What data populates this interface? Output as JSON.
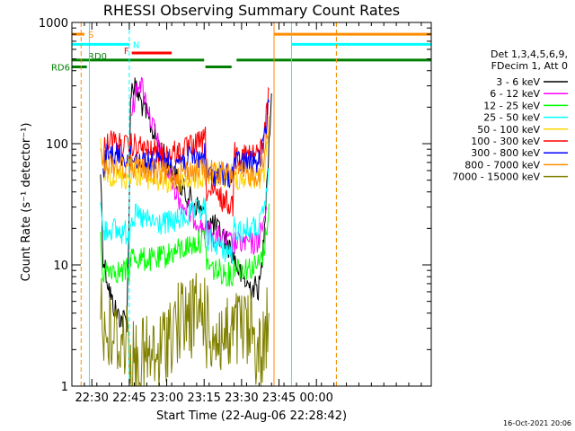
{
  "chart_data": {
    "type": "line",
    "title": "RHESSI Observing Summary Count Rates",
    "xlabel": "Start Time (22-Aug-06 22:28:42)",
    "ylabel": "Count Rate (s⁻¹ detector⁻¹)",
    "x_range_min": [
      -8,
      136
    ],
    "y_range": [
      1,
      1000
    ],
    "y_scale": "log",
    "grid": false,
    "legend_position": "right",
    "x_ticks": [
      {
        "v": 0,
        "label": "22:30"
      },
      {
        "v": 15,
        "label": "22:45"
      },
      {
        "v": 30,
        "label": "23:00"
      },
      {
        "v": 45,
        "label": "23:15"
      },
      {
        "v": 60,
        "label": "23:30"
      },
      {
        "v": 75,
        "label": "23:45"
      },
      {
        "v": 90,
        "label": "00:00"
      }
    ],
    "y_ticks": [
      {
        "v": 1,
        "label": "1"
      },
      {
        "v": 10,
        "label": "10"
      },
      {
        "v": 100,
        "label": "100"
      },
      {
        "v": 1000,
        "label": "1000"
      }
    ],
    "legend_header": [
      "Det 1,3,4,5,6,9,",
      "FDecim 1, Att 0"
    ],
    "series": [
      {
        "name": "3 - 6 keV",
        "color": "#000000",
        "points": [
          [
            3.5,
            60
          ],
          [
            4.5,
            12
          ],
          [
            6,
            8
          ],
          [
            8,
            5
          ],
          [
            10,
            4
          ],
          [
            12,
            3.6
          ],
          [
            14,
            3.5
          ],
          [
            15,
            30
          ],
          [
            15.5,
            280
          ],
          [
            17,
            300
          ],
          [
            19,
            240
          ],
          [
            22,
            170
          ],
          [
            25,
            120
          ],
          [
            28,
            85
          ],
          [
            32,
            60
          ],
          [
            36,
            43
          ],
          [
            40,
            34
          ],
          [
            44,
            28
          ],
          [
            47,
            23
          ],
          [
            50,
            20
          ],
          [
            53,
            17
          ],
          [
            56,
            13
          ],
          [
            58,
            10
          ],
          [
            60,
            8
          ],
          [
            62,
            7
          ],
          [
            64,
            6.5
          ],
          [
            67,
            6.5
          ],
          [
            68,
            9
          ],
          [
            71,
            100
          ],
          [
            72,
            260
          ]
        ]
      },
      {
        "name": "6 - 12 keV",
        "color": "#ff00ff",
        "points": [
          [
            16,
            180
          ],
          [
            19,
            350
          ],
          [
            21,
            250
          ],
          [
            24,
            150
          ],
          [
            27,
            90
          ],
          [
            30,
            60
          ],
          [
            33,
            45
          ],
          [
            35,
            35
          ],
          [
            37,
            30
          ],
          [
            39,
            27
          ],
          [
            42,
            24
          ],
          [
            44,
            21
          ],
          [
            46,
            19
          ],
          [
            48,
            18
          ],
          [
            50,
            17
          ],
          [
            53,
            16
          ],
          [
            56,
            15
          ],
          [
            59,
            15
          ],
          [
            62,
            15
          ],
          [
            64,
            15
          ],
          [
            66,
            15
          ],
          [
            68,
            19
          ],
          [
            70,
            30
          ]
        ]
      },
      {
        "name": "12 - 25 keV",
        "color": "#00ff00",
        "points": [
          [
            3.5,
            15
          ],
          [
            4.5,
            8.5
          ],
          [
            6,
            9
          ],
          [
            8,
            9.5
          ],
          [
            10,
            9
          ],
          [
            12,
            8.5
          ],
          [
            14,
            9
          ],
          [
            15,
            8.5
          ],
          [
            15.5,
            12
          ],
          [
            18,
            11.5
          ],
          [
            22,
            11
          ],
          [
            26,
            11
          ],
          [
            30,
            12
          ],
          [
            34,
            13
          ],
          [
            38,
            14
          ],
          [
            41,
            15
          ],
          [
            44,
            16
          ],
          [
            45.5,
            17
          ],
          [
            46,
            10
          ],
          [
            50,
            9
          ],
          [
            54,
            8.5
          ],
          [
            56.5,
            8
          ],
          [
            57,
            10
          ],
          [
            60,
            9.5
          ],
          [
            64,
            9.5
          ],
          [
            67,
            10
          ],
          [
            69,
            13
          ],
          [
            71,
            32
          ]
        ]
      },
      {
        "name": "25 - 50 keV",
        "color": "#00ffff",
        "points": [
          [
            3.5,
            30
          ],
          [
            4.5,
            18
          ],
          [
            6,
            20
          ],
          [
            8,
            20
          ],
          [
            10,
            19
          ],
          [
            12,
            18.5
          ],
          [
            14,
            18.5
          ],
          [
            15,
            18
          ],
          [
            15.5,
            25
          ],
          [
            18,
            25
          ],
          [
            22,
            23
          ],
          [
            26,
            22
          ],
          [
            30,
            22
          ],
          [
            34,
            23
          ],
          [
            38,
            25
          ],
          [
            41,
            27
          ],
          [
            44,
            28
          ],
          [
            45.5,
            30
          ],
          [
            46,
            16
          ],
          [
            50,
            15
          ],
          [
            54,
            13
          ],
          [
            56.5,
            12
          ],
          [
            57,
            20
          ],
          [
            60,
            19
          ],
          [
            64,
            20
          ],
          [
            67,
            20
          ],
          [
            69,
            28
          ],
          [
            71,
            60
          ]
        ]
      },
      {
        "name": "50 - 100 keV",
        "color": "#ffd700",
        "points": [
          [
            3.5,
            90
          ],
          [
            4.5,
            60
          ],
          [
            6,
            58
          ],
          [
            8,
            56
          ],
          [
            10,
            55
          ],
          [
            12,
            53
          ],
          [
            14,
            52
          ],
          [
            15,
            52
          ],
          [
            15.5,
            58
          ],
          [
            18,
            57
          ],
          [
            22,
            53
          ],
          [
            26,
            50
          ],
          [
            30,
            48
          ],
          [
            34,
            48
          ],
          [
            38,
            50
          ],
          [
            41,
            52
          ],
          [
            44,
            53
          ],
          [
            45.5,
            55
          ],
          [
            46,
            55
          ],
          [
            50,
            55
          ],
          [
            54,
            54
          ],
          [
            56.5,
            56
          ],
          [
            57,
            53
          ],
          [
            60,
            52
          ],
          [
            64,
            52
          ],
          [
            67,
            52
          ],
          [
            69,
            60
          ],
          [
            71,
            120
          ]
        ]
      },
      {
        "name": "100 - 300 keV",
        "color": "#ff0000",
        "points": [
          [
            4.5,
            82
          ],
          [
            6,
            110
          ],
          [
            8,
            105
          ],
          [
            10,
            100
          ],
          [
            12,
            96
          ],
          [
            14,
            94
          ],
          [
            15,
            92
          ],
          [
            15.5,
            97
          ],
          [
            18,
            95
          ],
          [
            22,
            88
          ],
          [
            26,
            84
          ],
          [
            30,
            82
          ],
          [
            34,
            85
          ],
          [
            38,
            90
          ],
          [
            41,
            96
          ],
          [
            44,
            102
          ],
          [
            45.5,
            110
          ],
          [
            46,
            40
          ],
          [
            50,
            37
          ],
          [
            54,
            33
          ],
          [
            56.5,
            31
          ],
          [
            57,
            85
          ],
          [
            60,
            82
          ],
          [
            64,
            80
          ],
          [
            67,
            82
          ],
          [
            69,
            110
          ],
          [
            71,
            280
          ]
        ]
      },
      {
        "name": "300 - 800 keV",
        "color": "#0000ff",
        "points": [
          [
            4.5,
            60
          ],
          [
            6,
            80
          ],
          [
            8,
            82
          ],
          [
            10,
            80
          ],
          [
            12,
            78
          ],
          [
            14,
            77
          ],
          [
            15,
            75
          ],
          [
            15.5,
            78
          ],
          [
            18,
            76
          ],
          [
            22,
            72
          ],
          [
            26,
            70
          ],
          [
            30,
            70
          ],
          [
            34,
            72
          ],
          [
            38,
            74
          ],
          [
            41,
            76
          ],
          [
            44,
            78
          ],
          [
            45.5,
            80
          ],
          [
            46,
            56
          ],
          [
            50,
            55
          ],
          [
            54,
            54
          ],
          [
            56.5,
            55
          ],
          [
            57,
            70
          ],
          [
            60,
            70
          ],
          [
            64,
            70
          ],
          [
            67,
            70
          ],
          [
            69,
            100
          ],
          [
            71,
            220
          ]
        ]
      },
      {
        "name": "800 - 7000 keV",
        "color": "#ff8c00",
        "points": [
          [
            3.5,
            100
          ],
          [
            4.5,
            75
          ],
          [
            6,
            70
          ],
          [
            8,
            68
          ],
          [
            10,
            66
          ],
          [
            12,
            65
          ],
          [
            14,
            64
          ],
          [
            15,
            64
          ],
          [
            15.5,
            66
          ],
          [
            18,
            65
          ],
          [
            22,
            60
          ],
          [
            26,
            57
          ],
          [
            30,
            56
          ],
          [
            34,
            57
          ],
          [
            38,
            59
          ],
          [
            41,
            60
          ],
          [
            44,
            61
          ],
          [
            45.5,
            62
          ],
          [
            46,
            60
          ],
          [
            50,
            58
          ],
          [
            54,
            56
          ],
          [
            56.5,
            54
          ],
          [
            57,
            57
          ],
          [
            60,
            56
          ],
          [
            64,
            56
          ],
          [
            67,
            56
          ],
          [
            69,
            75
          ],
          [
            71,
            170
          ]
        ]
      },
      {
        "name": "7000 - 15000 keV",
        "color": "#808000",
        "points": [
          [
            3.5,
            6
          ],
          [
            4.5,
            3
          ],
          [
            6,
            2.6
          ],
          [
            8,
            2.5
          ],
          [
            10,
            2.4
          ],
          [
            12,
            2.5
          ],
          [
            14,
            2.4
          ],
          [
            15,
            2.4
          ],
          [
            15.5,
            1.5
          ],
          [
            18,
            1.6
          ],
          [
            22,
            1.7
          ],
          [
            26,
            1.6
          ],
          [
            28,
            2
          ],
          [
            31,
            2.8
          ],
          [
            34,
            3.2
          ],
          [
            37,
            3.5
          ],
          [
            40,
            3.8
          ],
          [
            43,
            4
          ],
          [
            45.5,
            4.2
          ],
          [
            46,
            3
          ],
          [
            50,
            2.6
          ],
          [
            54,
            2.4
          ],
          [
            56.5,
            2.3
          ],
          [
            57,
            3
          ],
          [
            60,
            2.9
          ],
          [
            64,
            2.8
          ],
          [
            66,
            2.2
          ],
          [
            68,
            1.6
          ],
          [
            69,
            2.4
          ],
          [
            71,
            4
          ]
        ]
      }
    ],
    "flag_bars": [
      {
        "label": "S",
        "color": "#ff8c00",
        "y": 800,
        "x0": -8,
        "x1": -3
      },
      {
        "label": "N",
        "color": "#00ffff",
        "y": 660,
        "x0": -8,
        "x1": 15
      },
      {
        "label": "F",
        "color": "#ff0000",
        "y": 560,
        "x0": 16,
        "x1": 32
      },
      {
        "label": "RD0",
        "color": "#008000",
        "y": 490,
        "x0": -8,
        "x1": 45
      },
      {
        "label": "RD6",
        "color": "#008000",
        "y": 430,
        "x0": -8,
        "x1": -2
      }
    ],
    "flag_bars_unlabeled": [
      {
        "color": "#008000",
        "y": 430,
        "x0": 45.5,
        "x1": 56
      },
      {
        "color": "#008000",
        "y": 490,
        "x0": 58,
        "x1": 136
      },
      {
        "color": "#ff8c00",
        "y": 800,
        "x0": 73,
        "x1": 136
      },
      {
        "color": "#00ffff",
        "y": 660,
        "x0": 80,
        "x1": 136
      }
    ],
    "vertical_markers": [
      {
        "x": -4.3,
        "color": "#ff8c00",
        "style": "dashed"
      },
      {
        "x": -1,
        "color": "#00ffff",
        "style": "solid"
      },
      {
        "x": 15,
        "color": "#00ffff",
        "style": "dashed"
      },
      {
        "x": 73,
        "color": "#ff8c00",
        "style": "solid"
      },
      {
        "x": 80,
        "color": "#00ffff",
        "style": "solid"
      },
      {
        "x": 98,
        "color": "#00ffff",
        "style": "dashed"
      },
      {
        "x": 98,
        "color": "#ff8c00",
        "style": "dashed"
      }
    ]
  },
  "footer": {
    "timestamp": "16-Oct-2021 20:06"
  }
}
